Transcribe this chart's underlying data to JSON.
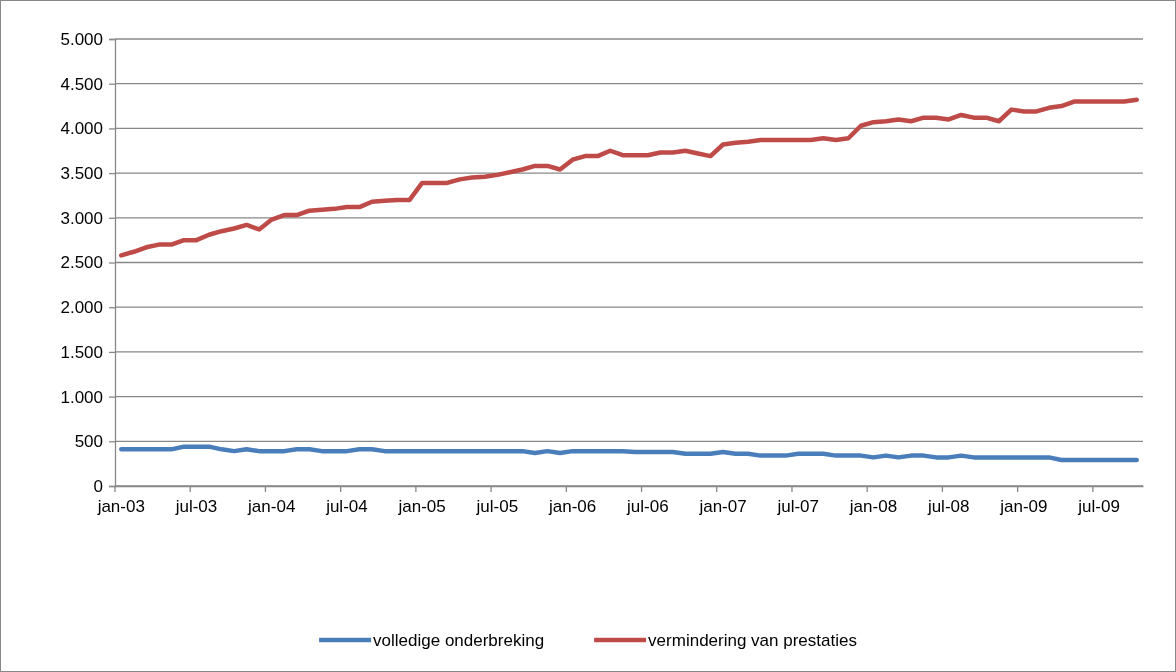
{
  "chart_data": {
    "type": "line",
    "categories": [
      "jan-03",
      null,
      null,
      null,
      null,
      null,
      "jul-03",
      null,
      null,
      null,
      null,
      null,
      "jan-04",
      null,
      null,
      null,
      null,
      null,
      "jul-04",
      null,
      null,
      null,
      null,
      null,
      "jan-05",
      null,
      null,
      null,
      null,
      null,
      "jul-05",
      null,
      null,
      null,
      null,
      null,
      "jan-06",
      null,
      null,
      null,
      null,
      null,
      "jul-06",
      null,
      null,
      null,
      null,
      null,
      "jan-07",
      null,
      null,
      null,
      null,
      null,
      "jul-07",
      null,
      null,
      null,
      null,
      null,
      "jan-08",
      null,
      null,
      null,
      null,
      null,
      "jul-08",
      null,
      null,
      null,
      null,
      null,
      "jan-09",
      null,
      null,
      null,
      null,
      null,
      "jul-09",
      null,
      null,
      null
    ],
    "series": [
      {
        "name": "volledige onderbreking",
        "color": "#4a7ebb",
        "values": [
          410,
          410,
          410,
          410,
          410,
          440,
          440,
          440,
          410,
          390,
          410,
          390,
          390,
          390,
          410,
          410,
          390,
          390,
          390,
          410,
          410,
          390,
          390,
          390,
          390,
          390,
          390,
          390,
          390,
          390,
          390,
          390,
          390,
          370,
          390,
          370,
          390,
          390,
          390,
          390,
          390,
          380,
          380,
          380,
          380,
          360,
          360,
          360,
          380,
          360,
          360,
          340,
          340,
          340,
          360,
          360,
          360,
          340,
          340,
          340,
          320,
          340,
          320,
          340,
          340,
          320,
          320,
          340,
          320,
          320,
          320,
          320,
          320,
          320,
          320,
          290,
          290,
          290,
          290,
          290,
          290,
          290
        ]
      },
      {
        "name": "vermindering van prestaties",
        "color": "#be4b48",
        "values": [
          2580,
          2620,
          2670,
          2700,
          2700,
          2750,
          2750,
          2810,
          2850,
          2880,
          2920,
          2870,
          2980,
          3030,
          3030,
          3080,
          3090,
          3100,
          3120,
          3120,
          3180,
          3190,
          3200,
          3200,
          3390,
          3390,
          3390,
          3430,
          3450,
          3460,
          3480,
          3510,
          3540,
          3580,
          3580,
          3540,
          3650,
          3690,
          3690,
          3750,
          3700,
          3700,
          3700,
          3730,
          3730,
          3750,
          3720,
          3690,
          3820,
          3840,
          3850,
          3870,
          3870,
          3870,
          3870,
          3870,
          3890,
          3870,
          3890,
          4030,
          4070,
          4080,
          4100,
          4080,
          4120,
          4120,
          4100,
          4150,
          4120,
          4120,
          4080,
          4210,
          4190,
          4190,
          4230,
          4250,
          4300,
          4300,
          4300,
          4300,
          4300,
          4320
        ]
      }
    ],
    "ylim": [
      0,
      5000
    ],
    "yticks": [
      0,
      500,
      {
        "value": 1000,
        "label": "1.000"
      },
      {
        "value": 1500,
        "label": "1.500"
      },
      {
        "value": 2000,
        "label": "2.000"
      },
      {
        "value": 2500,
        "label": "2.500"
      },
      {
        "value": 3000,
        "label": "3.000"
      },
      {
        "value": 3500,
        "label": "3.500"
      },
      {
        "value": 4000,
        "label": "4.000"
      },
      {
        "value": 4500,
        "label": "4.500"
      },
      {
        "value": 5000,
        "label": "5.000"
      }
    ],
    "grid": "y",
    "legend": "bottom",
    "marker": "none",
    "line_style": "solid"
  }
}
